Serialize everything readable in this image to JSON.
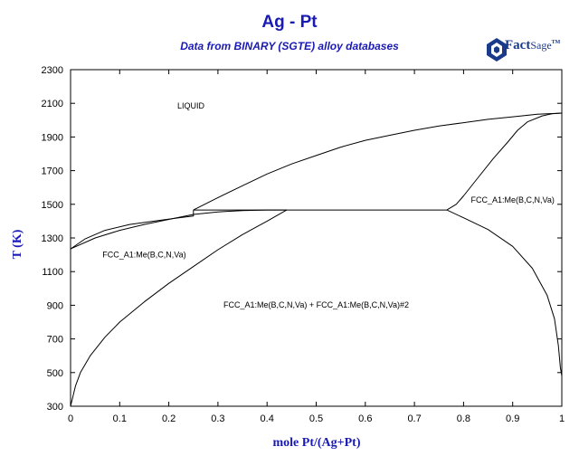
{
  "title": "Ag - Pt",
  "subtitle": "Data from BINARY (SGTE) alloy databases",
  "logo": {
    "text_main": "Fact",
    "text_sage": "Sage",
    "trademark": "TM",
    "icon": "factsage-logo-icon"
  },
  "colors": {
    "title": "#1a1ab4",
    "axis_label": "#1a1ab4",
    "line": "#000000",
    "logo": "#1a3a8a"
  },
  "axes": {
    "xlabel": "mole Pt/(Ag+Pt)",
    "ylabel": "T (K)",
    "xlim": [
      0,
      1
    ],
    "ylim": [
      300,
      2300
    ],
    "xticks": [
      "0",
      "0.1",
      "0.2",
      "0.3",
      "0.4",
      "0.5",
      "0.6",
      "0.7",
      "0.8",
      "0.9",
      "1"
    ],
    "yticks": [
      "300",
      "500",
      "700",
      "900",
      "1100",
      "1300",
      "1500",
      "1700",
      "1900",
      "2100",
      "2300"
    ]
  },
  "chart_data": {
    "type": "line",
    "region_labels": [
      {
        "text": "LIQUID",
        "x": 0.245,
        "y": 2070
      },
      {
        "text": "FCC_A1:Me(B,C,N,Va)",
        "x": 0.15,
        "y": 1185
      },
      {
        "text": "FCC_A1:Me(B,C,N,Va)",
        "x": 0.9,
        "y": 1510
      },
      {
        "text": "FCC_A1:Me(B,C,N,Va) + FCC_A1:Me(B,C,N,Va)#2",
        "x": 0.5,
        "y": 885
      }
    ],
    "series": [
      {
        "points": [
          [
            0,
            1235
          ],
          [
            0.05,
            1300
          ],
          [
            0.1,
            1345
          ],
          [
            0.15,
            1380
          ],
          [
            0.2,
            1410
          ],
          [
            0.25,
            1440
          ],
          [
            0.3,
            1455
          ],
          [
            0.35,
            1463
          ],
          [
            0.4,
            1466
          ],
          [
            0.44,
            1466
          ]
        ]
      },
      {
        "points": [
          [
            0,
            1235
          ],
          [
            0.03,
            1295
          ],
          [
            0.07,
            1345
          ],
          [
            0.12,
            1380
          ],
          [
            0.17,
            1400
          ],
          [
            0.22,
            1420
          ],
          [
            0.25,
            1430
          ],
          [
            0.25,
            1466
          ]
        ]
      },
      {
        "points": [
          [
            0.25,
            1466
          ],
          [
            0.3,
            1540
          ],
          [
            0.35,
            1610
          ],
          [
            0.4,
            1680
          ],
          [
            0.45,
            1740
          ],
          [
            0.5,
            1790
          ],
          [
            0.55,
            1840
          ],
          [
            0.6,
            1880
          ],
          [
            0.65,
            1910
          ],
          [
            0.7,
            1940
          ],
          [
            0.75,
            1965
          ],
          [
            0.8,
            1985
          ],
          [
            0.85,
            2005
          ],
          [
            0.9,
            2020
          ],
          [
            0.95,
            2035
          ],
          [
            1.0,
            2042
          ]
        ]
      },
      {
        "points": [
          [
            0.25,
            1466
          ],
          [
            0.766,
            1466
          ]
        ]
      },
      {
        "points": [
          [
            0.766,
            1466
          ],
          [
            0.785,
            1500
          ],
          [
            0.8,
            1550
          ],
          [
            0.83,
            1660
          ],
          [
            0.86,
            1770
          ],
          [
            0.89,
            1870
          ],
          [
            0.91,
            1940
          ],
          [
            0.93,
            1990
          ],
          [
            0.96,
            2025
          ],
          [
            0.98,
            2038
          ],
          [
            1.0,
            2042
          ]
        ]
      },
      {
        "points": [
          [
            0.766,
            1466
          ],
          [
            0.8,
            1420
          ],
          [
            0.85,
            1350
          ],
          [
            0.9,
            1250
          ],
          [
            0.94,
            1120
          ],
          [
            0.97,
            960
          ],
          [
            0.985,
            820
          ],
          [
            0.993,
            660
          ],
          [
            0.997,
            530
          ],
          [
            1.0,
            480
          ]
        ]
      },
      {
        "points": [
          [
            0,
            300
          ],
          [
            0.01,
            420
          ],
          [
            0.02,
            500
          ],
          [
            0.04,
            600
          ],
          [
            0.07,
            710
          ],
          [
            0.1,
            800
          ],
          [
            0.15,
            920
          ],
          [
            0.2,
            1030
          ],
          [
            0.25,
            1130
          ],
          [
            0.3,
            1230
          ],
          [
            0.35,
            1320
          ],
          [
            0.4,
            1400
          ],
          [
            0.44,
            1466
          ]
        ]
      }
    ],
    "grid": false
  }
}
